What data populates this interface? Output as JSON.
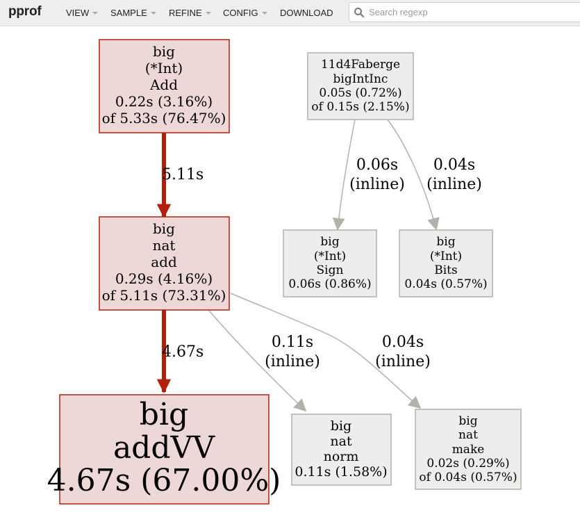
{
  "app": {
    "title": "pprof"
  },
  "toolbar": {
    "menus": [
      {
        "label": "VIEW",
        "has_dropdown": true
      },
      {
        "label": "SAMPLE",
        "has_dropdown": true
      },
      {
        "label": "REFINE",
        "has_dropdown": true
      },
      {
        "label": "CONFIG",
        "has_dropdown": true
      },
      {
        "label": "DOWNLOAD",
        "has_dropdown": false
      }
    ],
    "search": {
      "placeholder": "Search regexp",
      "value": "",
      "icon": "search-icon"
    }
  },
  "graph": {
    "nodes": {
      "big_int_add": {
        "lines": [
          "big",
          "(*Int)",
          "Add",
          "0.22s (3.16%)",
          "of 5.33s (76.47%)"
        ],
        "hot": true
      },
      "big_nat_add": {
        "lines": [
          "big",
          "nat",
          "add",
          "0.29s (4.16%)",
          "of 5.11s (73.31%)"
        ],
        "hot": true
      },
      "big_addvv": {
        "lines": [
          "big",
          "addVV",
          "4.67s (67.00%)"
        ],
        "hot": true
      },
      "faberge_bigintinc": {
        "lines": [
          "11d4Faberge",
          "bigIntInc",
          "0.05s (0.72%)",
          "of 0.15s (2.15%)"
        ],
        "hot": false
      },
      "big_int_sign": {
        "lines": [
          "big",
          "(*Int)",
          "Sign",
          "0.06s (0.86%)"
        ],
        "hot": false
      },
      "big_int_bits": {
        "lines": [
          "big",
          "(*Int)",
          "Bits",
          "0.04s (0.57%)"
        ],
        "hot": false
      },
      "big_nat_norm": {
        "lines": [
          "big",
          "nat",
          "norm",
          "0.11s (1.58%)"
        ],
        "hot": false
      },
      "big_nat_make": {
        "lines": [
          "big",
          "nat",
          "make",
          "0.02s (0.29%)",
          "of 0.04s (0.57%)"
        ],
        "hot": false
      }
    },
    "edges": {
      "int_add_to_nat_add": {
        "from": "big_int_add",
        "to": "big_nat_add",
        "lines": [
          "5.11s"
        ]
      },
      "nat_add_to_addvv": {
        "from": "big_nat_add",
        "to": "big_addvv",
        "lines": [
          "4.67s"
        ]
      },
      "nat_add_to_norm": {
        "from": "big_nat_add",
        "to": "big_nat_norm",
        "lines": [
          "0.11s",
          "(inline)"
        ]
      },
      "nat_add_to_make": {
        "from": "big_nat_add",
        "to": "big_nat_make",
        "lines": [
          "0.04s",
          "(inline)"
        ]
      },
      "bigintinc_to_sign": {
        "from": "faberge_bigintinc",
        "to": "big_int_sign",
        "lines": [
          "0.06s",
          "(inline)"
        ]
      },
      "bigintinc_to_bits": {
        "from": "faberge_bigintinc",
        "to": "big_int_bits",
        "lines": [
          "0.04s",
          "(inline)"
        ]
      }
    },
    "colors": {
      "hot_fill": "#eed7d7",
      "hot_stroke": "#b2200b",
      "hot_edge": "#b2200b",
      "cold_fill": "#ededec",
      "cold_stroke": "#b2b2ab",
      "cold_edge": "#b2b2ab"
    }
  }
}
